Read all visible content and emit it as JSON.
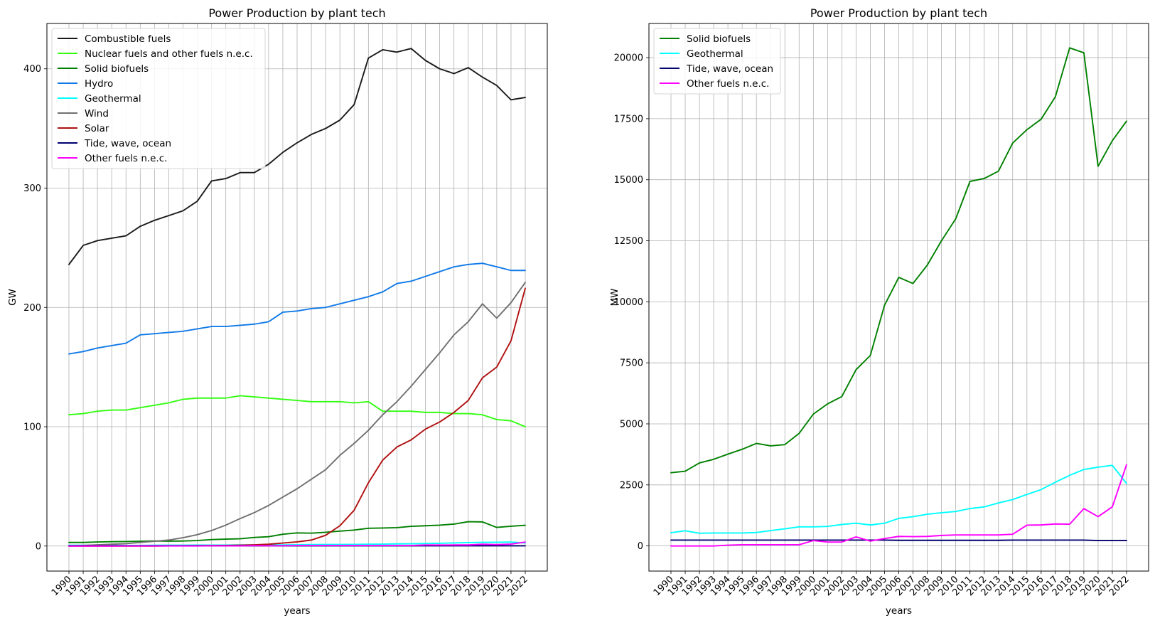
{
  "chart_data": [
    {
      "type": "line",
      "title": "Power Production by plant tech",
      "xlabel": "years",
      "ylabel": "GW",
      "ylim": [
        -21,
        438
      ],
      "yticks": [
        0,
        100,
        200,
        300,
        400
      ],
      "grid": true,
      "legend_position": "top-left",
      "x": [
        "1990",
        "1991",
        "1992",
        "1993",
        "1994",
        "1995",
        "1996",
        "1997",
        "1998",
        "1999",
        "2000",
        "2001",
        "2002",
        "2003",
        "2004",
        "2005",
        "2006",
        "2007",
        "2008",
        "2009",
        "2010",
        "2011",
        "2012",
        "2013",
        "2014",
        "2015",
        "2016",
        "2017",
        "2018",
        "2019",
        "2020",
        "2021",
        "2022"
      ],
      "series": [
        {
          "name": "Combustible fuels",
          "color": "#1a1a1a",
          "values": [
            236,
            252,
            256,
            258,
            260,
            268,
            273,
            277,
            281,
            289,
            306,
            308,
            313,
            313,
            320,
            330,
            338,
            345,
            350,
            357,
            370,
            409,
            416,
            414,
            417,
            407,
            400,
            396,
            401,
            393,
            386,
            374,
            376
          ]
        },
        {
          "name": "Nuclear fuels and other fuels n.e.c.",
          "color": "#33ff11",
          "values": [
            110,
            111,
            113,
            114,
            114,
            116,
            118,
            120,
            123,
            124,
            124,
            124,
            126,
            125,
            124,
            123,
            122,
            121,
            121,
            121,
            120,
            121,
            113,
            113,
            113,
            112,
            112,
            111,
            111,
            110,
            106,
            105,
            100
          ]
        },
        {
          "name": "Solid biofuels",
          "color": "#008000",
          "values": [
            3,
            3,
            3.4,
            3.6,
            3.8,
            4,
            4.2,
            4.1,
            4.2,
            4.6,
            5.4,
            5.8,
            6.1,
            7.2,
            7.8,
            9.9,
            11,
            10.8,
            11.5,
            12.5,
            13.4,
            14.9,
            15.1,
            15.4,
            16.5,
            17,
            17.5,
            18.4,
            20.4,
            20.2,
            15.6,
            16.6,
            17.4
          ]
        },
        {
          "name": "Hydro",
          "color": "#117ae8",
          "values": [
            161,
            163,
            166,
            168,
            170,
            177,
            178,
            179,
            180,
            182,
            184,
            184,
            185,
            186,
            188,
            196,
            197,
            199,
            200,
            203,
            206,
            209,
            213,
            220,
            222,
            226,
            230,
            234,
            236,
            237,
            234,
            231,
            231
          ]
        },
        {
          "name": "Geothermal",
          "color": "#00ffff",
          "values": [
            0.6,
            0.6,
            0.5,
            0.5,
            0.5,
            0.5,
            0.6,
            0.7,
            0.7,
            0.8,
            0.8,
            0.8,
            0.9,
            0.9,
            0.9,
            0.9,
            1.1,
            1.2,
            1.3,
            1.3,
            1.4,
            1.5,
            1.6,
            1.8,
            1.9,
            2.1,
            2.3,
            2.6,
            2.9,
            3.1,
            3.2,
            3.3,
            2.6
          ]
        },
        {
          "name": "Wind",
          "color": "#707070",
          "values": [
            0,
            0.5,
            1,
            1.5,
            2,
            3,
            4,
            5,
            7,
            9.5,
            13,
            17.5,
            23,
            28,
            34,
            41,
            48,
            56,
            64,
            76,
            86,
            97,
            110,
            121,
            134,
            148,
            162,
            177,
            188,
            203,
            191,
            204,
            221
          ]
        },
        {
          "name": "Solar",
          "color": "#b01010",
          "values": [
            0,
            0,
            0,
            0,
            0,
            0,
            0,
            0.1,
            0.2,
            0.3,
            0.4,
            0.5,
            0.7,
            1,
            1.5,
            2.5,
            3.5,
            5,
            9,
            17,
            30,
            53,
            72,
            83,
            89,
            98,
            104,
            112,
            122,
            141,
            150,
            172,
            216
          ]
        },
        {
          "name": "Tide, wave, ocean",
          "color": "#00006e",
          "values": [
            0.24,
            0.24,
            0.24,
            0.24,
            0.24,
            0.24,
            0.24,
            0.24,
            0.24,
            0.24,
            0.24,
            0.24,
            0.24,
            0.24,
            0.24,
            0.24,
            0.23,
            0.23,
            0.23,
            0.23,
            0.23,
            0.23,
            0.23,
            0.23,
            0.24,
            0.24,
            0.24,
            0.24,
            0.24,
            0.24,
            0.22,
            0.22,
            0.22
          ]
        },
        {
          "name": "Other fuels n.e.c.",
          "color": "#ff00ff",
          "values": [
            0,
            0,
            0,
            0,
            0.05,
            0.05,
            0.05,
            0.05,
            0.05,
            0.05,
            0.2,
            0.15,
            0.15,
            0.35,
            0.2,
            0.3,
            0.4,
            0.4,
            0.4,
            0.45,
            0.45,
            0.45,
            0.45,
            0.45,
            0.45,
            0.85,
            0.85,
            0.9,
            0.9,
            1.5,
            1.2,
            1.6,
            3.3
          ]
        }
      ]
    },
    {
      "type": "line",
      "title": "Power Production by plant tech",
      "xlabel": "years",
      "ylabel": "MW",
      "ylim": [
        -1030,
        21400
      ],
      "yticks": [
        0,
        2500,
        5000,
        7500,
        10000,
        12500,
        15000,
        17500,
        20000
      ],
      "grid": true,
      "legend_position": "top-left",
      "x": [
        "1990",
        "1991",
        "1992",
        "1993",
        "1994",
        "1995",
        "1996",
        "1997",
        "1998",
        "1999",
        "2000",
        "2001",
        "2002",
        "2003",
        "2004",
        "2005",
        "2006",
        "2007",
        "2008",
        "2009",
        "2010",
        "2011",
        "2012",
        "2013",
        "2014",
        "2015",
        "2016",
        "2017",
        "2018",
        "2019",
        "2020",
        "2021",
        "2022"
      ],
      "series": [
        {
          "name": "Solid biofuels",
          "color": "#008000",
          "values": [
            3000,
            3060,
            3400,
            3550,
            3760,
            3960,
            4200,
            4100,
            4150,
            4610,
            5400,
            5820,
            6120,
            7220,
            7800,
            9860,
            11000,
            10750,
            11500,
            12500,
            13400,
            14930,
            15050,
            15350,
            16500,
            17050,
            17480,
            18400,
            20400,
            20200,
            15550,
            16600,
            17400
          ]
        },
        {
          "name": "Geothermal",
          "color": "#00ffff",
          "values": [
            540,
            620,
            520,
            530,
            530,
            530,
            550,
            630,
            700,
            780,
            780,
            800,
            880,
            930,
            860,
            930,
            1130,
            1200,
            1300,
            1360,
            1410,
            1530,
            1600,
            1760,
            1900,
            2110,
            2310,
            2610,
            2890,
            3130,
            3230,
            3300,
            2560
          ]
        },
        {
          "name": "Tide, wave, ocean",
          "color": "#00006e",
          "values": [
            240,
            240,
            240,
            240,
            240,
            240,
            240,
            240,
            240,
            240,
            240,
            240,
            240,
            240,
            240,
            240,
            230,
            230,
            230,
            230,
            230,
            230,
            230,
            230,
            240,
            240,
            240,
            240,
            240,
            240,
            220,
            220,
            220
          ]
        },
        {
          "name": "Other fuels n.e.c.",
          "color": "#ff00ff",
          "values": [
            0,
            0,
            0,
            0,
            30,
            50,
            50,
            50,
            50,
            50,
            220,
            160,
            160,
            370,
            200,
            300,
            390,
            380,
            390,
            430,
            450,
            450,
            450,
            450,
            480,
            850,
            860,
            900,
            890,
            1530,
            1200,
            1600,
            3330
          ]
        }
      ]
    }
  ]
}
